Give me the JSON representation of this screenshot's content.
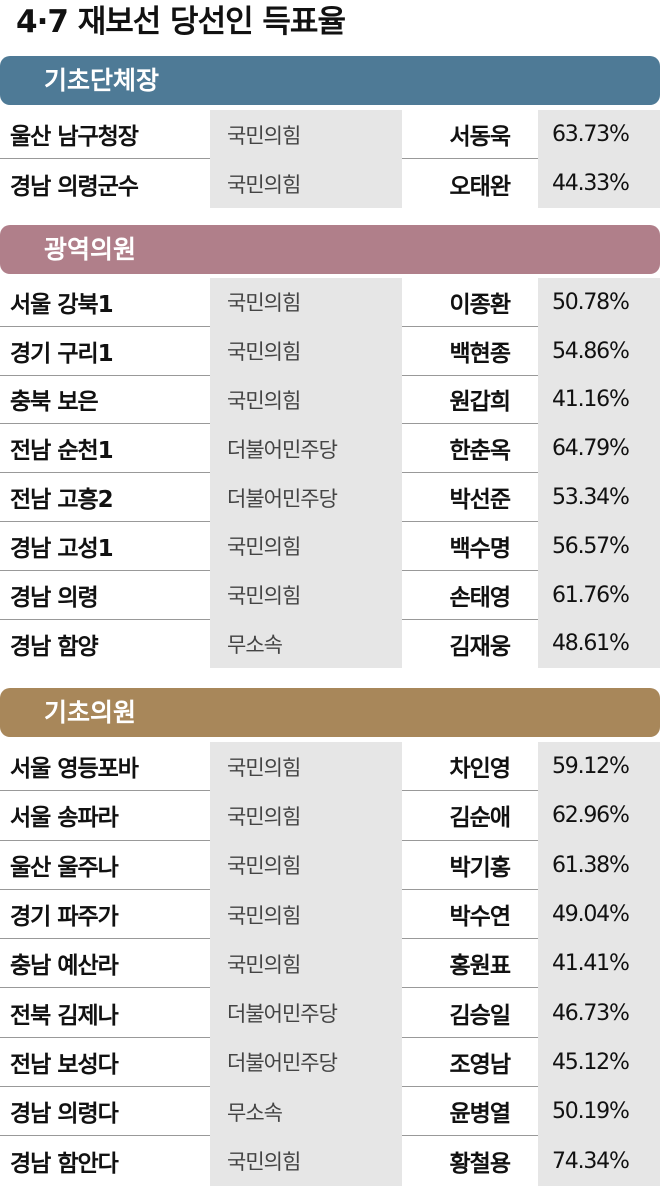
{
  "title": "4·7 재보선 당선인 득표율",
  "colors": {
    "section_1": "#4e7a96",
    "section_2": "#b07f8a",
    "section_3": "#a8875a",
    "cell_shade": "#e6e6e6"
  },
  "sections": [
    {
      "name": "기초단체장",
      "rows": [
        [
          "울산 남구청장",
          "국민의힘",
          "서동욱",
          "63.73%"
        ],
        [
          "경남 의령군수",
          "국민의힘",
          "오태완",
          "44.33%"
        ]
      ]
    },
    {
      "name": "광역의원",
      "rows": [
        [
          "서울 강북1",
          "국민의힘",
          "이종환",
          "50.78%"
        ],
        [
          "경기 구리1",
          "국민의힘",
          "백현종",
          "54.86%"
        ],
        [
          "충북 보은",
          "국민의힘",
          "원갑희",
          "41.16%"
        ],
        [
          "전남 순천1",
          "더불어민주당",
          "한춘옥",
          "64.79%"
        ],
        [
          "전남 고흥2",
          "더불어민주당",
          "박선준",
          "53.34%"
        ],
        [
          "경남 고성1",
          "국민의힘",
          "백수명",
          "56.57%"
        ],
        [
          "경남 의령",
          "국민의힘",
          "손태영",
          "61.76%"
        ],
        [
          "경남 함양",
          "무소속",
          "김재웅",
          "48.61%"
        ]
      ]
    },
    {
      "name": "기초의원",
      "rows": [
        [
          "서울 영등포바",
          "국민의힘",
          "차인영",
          "59.12%"
        ],
        [
          "서울 송파라",
          "국민의힘",
          "김순애",
          "62.96%"
        ],
        [
          "울산 울주나",
          "국민의힘",
          "박기홍",
          "61.38%"
        ],
        [
          "경기 파주가",
          "국민의힘",
          "박수연",
          "49.04%"
        ],
        [
          "충남 예산라",
          "국민의힘",
          "홍원표",
          "41.41%"
        ],
        [
          "전북 김제나",
          "더불어민주당",
          "김승일",
          "46.73%"
        ],
        [
          "전남 보성다",
          "더불어민주당",
          "조영남",
          "45.12%"
        ],
        [
          "경남 의령다",
          "무소속",
          "윤병열",
          "50.19%"
        ],
        [
          "경남 함안다",
          "국민의힘",
          "황철용",
          "74.34%"
        ]
      ]
    }
  ]
}
